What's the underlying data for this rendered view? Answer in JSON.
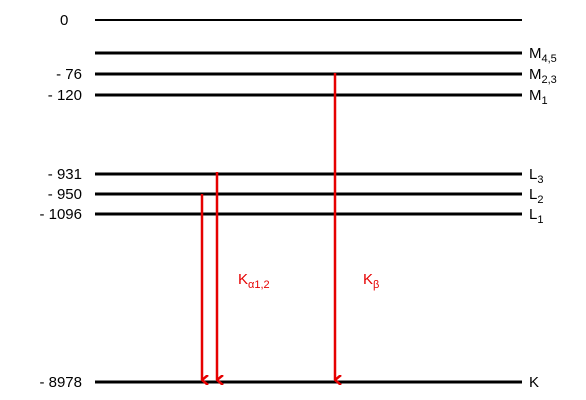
{
  "diagram": {
    "energy_labels": {
      "zero": "0",
      "m23": "- 76",
      "m1": "- 120",
      "l3": "- 931",
      "l2": "- 950",
      "l1": "- 1096",
      "k": "- 8978"
    },
    "shell_labels": {
      "m45": {
        "main": "M",
        "sub": "4,5"
      },
      "m23": {
        "main": "M",
        "sub": "2,3"
      },
      "m1": {
        "main": "M",
        "sub": "1"
      },
      "l3": {
        "main": "L",
        "sub": "3"
      },
      "l2": {
        "main": "L",
        "sub": "2"
      },
      "l1": {
        "main": "L",
        "sub": "1"
      },
      "k": {
        "main": "K"
      }
    },
    "transitions": {
      "k_alpha": {
        "main": "K",
        "sub": "α1,2"
      },
      "k_beta": {
        "main": "K",
        "sub": "β"
      }
    },
    "colors": {
      "level": "#000000",
      "arrow": "#e60000"
    }
  }
}
